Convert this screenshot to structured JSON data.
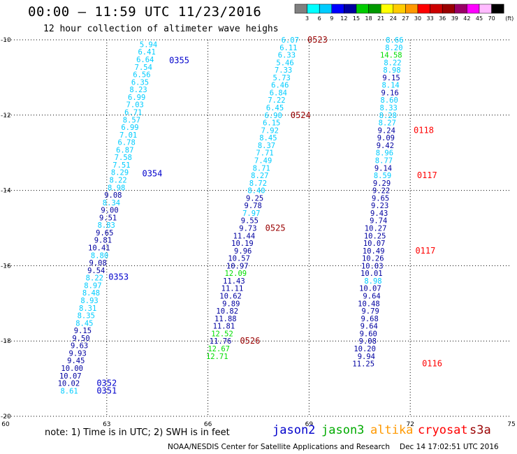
{
  "title": "00:00 – 11:59 UTC 11/23/2016",
  "subtitle": "12 hour collection of altimeter wave heighs",
  "legend": {
    "labels": [
      "3",
      "6",
      "9",
      "12",
      "15",
      "18",
      "21",
      "24",
      "27",
      "30",
      "33",
      "36",
      "39",
      "42",
      "45",
      "70"
    ],
    "unit": "(ft)",
    "colors": [
      "#808080",
      "#00ffff",
      "#00ccff",
      "#0000ff",
      "#0000a0",
      "#00cc00",
      "#009900",
      "#ffff00",
      "#ffcc00",
      "#ff9900",
      "#ff0000",
      "#cc0000",
      "#990000",
      "#990066",
      "#ff00ff",
      "#ffbbff",
      "#000000"
    ]
  },
  "note": "note: 1) Time is in UTC; 2) SWH is in feet",
  "satellites": [
    {
      "name": "jason2",
      "color": "#0000cc"
    },
    {
      "name": "jason3",
      "color": "#00aa00"
    },
    {
      "name": "altika",
      "color": "#ff9900"
    },
    {
      "name": "cryosat",
      "color": "#ff0000"
    },
    {
      "name": "s3a",
      "color": "#990000"
    }
  ],
  "credit": "NOAA/NESDIS Center for Satellite Applications and Research",
  "generated": "Dec 14 17:02:51 UTC 2016",
  "chart_data": {
    "type": "scatter",
    "x_ticks": [
      "60",
      "63",
      "66",
      "69",
      "72",
      "75"
    ],
    "y_ticks": [
      "-10",
      "-12",
      "-14",
      "-16",
      "-18",
      "-20"
    ],
    "xlim": [
      60,
      75
    ],
    "ylim": [
      -20,
      -10
    ],
    "grid": true,
    "tracks": [
      {
        "satellite": "jason2",
        "points": [
          {
            "x": 64.5,
            "y": -10.12,
            "v": "5.94"
          },
          {
            "x": 64.45,
            "y": -10.32,
            "v": "6.41"
          },
          {
            "x": 64.4,
            "y": -10.52,
            "v": "6.64"
          },
          {
            "x": 64.35,
            "y": -10.72,
            "v": "7.54"
          },
          {
            "x": 64.3,
            "y": -10.92,
            "v": "6.56"
          },
          {
            "x": 64.25,
            "y": -11.12,
            "v": "6.35"
          },
          {
            "x": 64.2,
            "y": -11.32,
            "v": "8.23"
          },
          {
            "x": 64.15,
            "y": -11.52,
            "v": "6.99"
          },
          {
            "x": 64.1,
            "y": -11.72,
            "v": "7.03"
          },
          {
            "x": 64.05,
            "y": -11.92,
            "v": "6.71"
          },
          {
            "x": 64.0,
            "y": -12.12,
            "v": "8.57"
          },
          {
            "x": 63.95,
            "y": -12.32,
            "v": "6.99"
          },
          {
            "x": 63.9,
            "y": -12.52,
            "v": "7.01"
          },
          {
            "x": 63.85,
            "y": -12.72,
            "v": "6.78"
          },
          {
            "x": 63.8,
            "y": -12.92,
            "v": "6.87"
          },
          {
            "x": 63.75,
            "y": -13.12,
            "v": "7.58"
          },
          {
            "x": 63.7,
            "y": -13.32,
            "v": "7.51"
          },
          {
            "x": 63.65,
            "y": -13.52,
            "v": "8.29"
          },
          {
            "x": 63.6,
            "y": -13.72,
            "v": "8.22"
          },
          {
            "x": 63.55,
            "y": -13.92,
            "v": "8.98"
          },
          {
            "x": 63.45,
            "y": -14.12,
            "v": "9.08"
          },
          {
            "x": 63.4,
            "y": -14.32,
            "v": "8.34"
          },
          {
            "x": 63.35,
            "y": -14.52,
            "v": "9.00"
          },
          {
            "x": 63.3,
            "y": -14.72,
            "v": "9.51"
          },
          {
            "x": 63.25,
            "y": -14.92,
            "v": "8.83"
          },
          {
            "x": 63.2,
            "y": -15.12,
            "v": "9.65"
          },
          {
            "x": 63.15,
            "y": -15.32,
            "v": "9.81"
          },
          {
            "x": 63.1,
            "y": -15.52,
            "v": "10.41"
          },
          {
            "x": 63.05,
            "y": -15.72,
            "v": "8.80"
          },
          {
            "x": 63.0,
            "y": -15.92,
            "v": "9.08"
          },
          {
            "x": 62.95,
            "y": -16.12,
            "v": "9.54"
          },
          {
            "x": 62.9,
            "y": -16.32,
            "v": "8.22"
          },
          {
            "x": 62.85,
            "y": -16.52,
            "v": "8.97"
          },
          {
            "x": 62.8,
            "y": -16.72,
            "v": "8.48"
          },
          {
            "x": 62.75,
            "y": -16.92,
            "v": "8.93"
          },
          {
            "x": 62.7,
            "y": -17.12,
            "v": "8.31"
          },
          {
            "x": 62.65,
            "y": -17.32,
            "v": "8.35"
          },
          {
            "x": 62.6,
            "y": -17.52,
            "v": "8.45"
          },
          {
            "x": 62.55,
            "y": -17.72,
            "v": "9.15"
          },
          {
            "x": 62.5,
            "y": -17.92,
            "v": "9.50"
          },
          {
            "x": 62.45,
            "y": -18.12,
            "v": "9.63"
          },
          {
            "x": 62.4,
            "y": -18.32,
            "v": "9.93"
          },
          {
            "x": 62.35,
            "y": -18.52,
            "v": "9.45"
          },
          {
            "x": 62.3,
            "y": -18.72,
            "v": "10.00"
          },
          {
            "x": 62.25,
            "y": -18.92,
            "v": "10.07"
          },
          {
            "x": 62.2,
            "y": -19.12,
            "v": "10.02"
          },
          {
            "x": 62.15,
            "y": -19.32,
            "v": "8.61"
          }
        ],
        "time_labels": [
          {
            "x": 64.85,
            "y": -10.55,
            "t": "0355"
          },
          {
            "x": 64.05,
            "y": -13.55,
            "t": "0354"
          },
          {
            "x": 63.05,
            "y": -16.3,
            "t": "0353"
          },
          {
            "x": 62.7,
            "y": -19.12,
            "t": "0352"
          },
          {
            "x": 62.7,
            "y": -19.32,
            "t": "0351"
          }
        ]
      },
      {
        "satellite": "jason2",
        "points": [
          {
            "x": 68.7,
            "y": -10.0,
            "v": "6.07"
          },
          {
            "x": 68.65,
            "y": -10.2,
            "v": "6.11"
          },
          {
            "x": 68.6,
            "y": -10.4,
            "v": "6.33"
          },
          {
            "x": 68.55,
            "y": -10.6,
            "v": "5.46"
          },
          {
            "x": 68.5,
            "y": -10.8,
            "v": "7.33"
          },
          {
            "x": 68.45,
            "y": -11.0,
            "v": "5.73"
          },
          {
            "x": 68.4,
            "y": -11.2,
            "v": "6.46"
          },
          {
            "x": 68.35,
            "y": -11.4,
            "v": "6.84"
          },
          {
            "x": 68.3,
            "y": -11.6,
            "v": "7.22"
          },
          {
            "x": 68.25,
            "y": -11.8,
            "v": "6.45"
          },
          {
            "x": 68.2,
            "y": -12.0,
            "v": "6.90"
          },
          {
            "x": 68.15,
            "y": -12.2,
            "v": "6.15"
          },
          {
            "x": 68.1,
            "y": -12.4,
            "v": "7.92"
          },
          {
            "x": 68.05,
            "y": -12.6,
            "v": "8.45"
          },
          {
            "x": 68.0,
            "y": -12.8,
            "v": "8.37"
          },
          {
            "x": 67.95,
            "y": -13.0,
            "v": "7.71"
          },
          {
            "x": 67.9,
            "y": -13.2,
            "v": "7.49"
          },
          {
            "x": 67.85,
            "y": -13.4,
            "v": "8.71"
          },
          {
            "x": 67.8,
            "y": -13.6,
            "v": "8.27"
          },
          {
            "x": 67.75,
            "y": -13.8,
            "v": "8.72"
          },
          {
            "x": 67.7,
            "y": -14.0,
            "v": "8.40"
          },
          {
            "x": 67.65,
            "y": -14.2,
            "v": "9.25"
          },
          {
            "x": 67.6,
            "y": -14.4,
            "v": "9.78"
          },
          {
            "x": 67.55,
            "y": -14.6,
            "v": "7.97"
          },
          {
            "x": 67.5,
            "y": -14.8,
            "v": "9.55"
          },
          {
            "x": 67.45,
            "y": -15.0,
            "v": "9.73"
          },
          {
            "x": 67.4,
            "y": -15.2,
            "v": "11.44"
          },
          {
            "x": 67.35,
            "y": -15.4,
            "v": "10.19"
          },
          {
            "x": 67.3,
            "y": -15.6,
            "v": "9.96"
          },
          {
            "x": 67.25,
            "y": -15.8,
            "v": "10.57"
          },
          {
            "x": 67.2,
            "y": -16.0,
            "v": "10.97"
          },
          {
            "x": 67.15,
            "y": -16.2,
            "v": "12.09"
          },
          {
            "x": 67.1,
            "y": -16.4,
            "v": "11.43"
          },
          {
            "x": 67.05,
            "y": -16.6,
            "v": "11.11"
          },
          {
            "x": 67.0,
            "y": -16.8,
            "v": "10.62"
          },
          {
            "x": 66.95,
            "y": -17.0,
            "v": "9.89"
          },
          {
            "x": 66.9,
            "y": -17.2,
            "v": "10.82"
          },
          {
            "x": 66.85,
            "y": -17.4,
            "v": "11.88"
          },
          {
            "x": 66.8,
            "y": -17.6,
            "v": "11.81"
          },
          {
            "x": 66.75,
            "y": -17.8,
            "v": "12.52"
          },
          {
            "x": 66.7,
            "y": -18.0,
            "v": "11.76"
          },
          {
            "x": 66.65,
            "y": -18.2,
            "v": "12.67"
          },
          {
            "x": 66.6,
            "y": -18.4,
            "v": "12.71"
          }
        ],
        "time_labels": [
          {
            "x": 68.95,
            "y": -10.0,
            "t": "0523"
          },
          {
            "x": 68.45,
            "y": -12.0,
            "t": "0524"
          },
          {
            "x": 67.7,
            "y": -15.0,
            "t": "0525"
          },
          {
            "x": 66.95,
            "y": -18.0,
            "t": "0526"
          }
        ]
      },
      {
        "satellite": "cryosat",
        "points": [
          {
            "x": 71.8,
            "y": -10.0,
            "v": "8.66"
          },
          {
            "x": 71.78,
            "y": -10.2,
            "v": "8.20"
          },
          {
            "x": 71.76,
            "y": -10.4,
            "v": "14.58"
          },
          {
            "x": 71.74,
            "y": -10.6,
            "v": "8.22"
          },
          {
            "x": 71.72,
            "y": -10.8,
            "v": "8.98"
          },
          {
            "x": 71.7,
            "y": -11.0,
            "v": "9.15"
          },
          {
            "x": 71.68,
            "y": -11.2,
            "v": "8.14"
          },
          {
            "x": 71.66,
            "y": -11.4,
            "v": "9.16"
          },
          {
            "x": 71.64,
            "y": -11.6,
            "v": "8.60"
          },
          {
            "x": 71.62,
            "y": -11.8,
            "v": "8.33"
          },
          {
            "x": 71.6,
            "y": -12.0,
            "v": "8.28"
          },
          {
            "x": 71.58,
            "y": -12.2,
            "v": "8.27"
          },
          {
            "x": 71.56,
            "y": -12.4,
            "v": "9.24"
          },
          {
            "x": 71.54,
            "y": -12.6,
            "v": "9.09"
          },
          {
            "x": 71.52,
            "y": -12.8,
            "v": "9.42"
          },
          {
            "x": 71.5,
            "y": -13.0,
            "v": "8.96"
          },
          {
            "x": 71.48,
            "y": -13.2,
            "v": "8.77"
          },
          {
            "x": 71.46,
            "y": -13.4,
            "v": "9.14"
          },
          {
            "x": 71.44,
            "y": -13.6,
            "v": "8.59"
          },
          {
            "x": 71.42,
            "y": -13.8,
            "v": "9.29"
          },
          {
            "x": 71.4,
            "y": -14.0,
            "v": "9.22"
          },
          {
            "x": 71.38,
            "y": -14.2,
            "v": "9.65"
          },
          {
            "x": 71.36,
            "y": -14.4,
            "v": "9.23"
          },
          {
            "x": 71.34,
            "y": -14.6,
            "v": "9.43"
          },
          {
            "x": 71.32,
            "y": -14.8,
            "v": "9.74"
          },
          {
            "x": 71.3,
            "y": -15.0,
            "v": "10.27"
          },
          {
            "x": 71.28,
            "y": -15.2,
            "v": "10.25"
          },
          {
            "x": 71.26,
            "y": -15.4,
            "v": "10.07"
          },
          {
            "x": 71.24,
            "y": -15.6,
            "v": "10.49"
          },
          {
            "x": 71.22,
            "y": -15.8,
            "v": "10.26"
          },
          {
            "x": 71.2,
            "y": -16.0,
            "v": "10.03"
          },
          {
            "x": 71.18,
            "y": -16.2,
            "v": "10.01"
          },
          {
            "x": 71.16,
            "y": -16.4,
            "v": "8.98"
          },
          {
            "x": 71.14,
            "y": -16.6,
            "v": "10.07"
          },
          {
            "x": 71.12,
            "y": -16.8,
            "v": "9.64"
          },
          {
            "x": 71.1,
            "y": -17.0,
            "v": "10.48"
          },
          {
            "x": 71.08,
            "y": -17.2,
            "v": "9.79"
          },
          {
            "x": 71.06,
            "y": -17.4,
            "v": "9.68"
          },
          {
            "x": 71.04,
            "y": -17.6,
            "v": "9.64"
          },
          {
            "x": 71.02,
            "y": -17.8,
            "v": "9.60"
          },
          {
            "x": 71.0,
            "y": -18.0,
            "v": "9.08"
          },
          {
            "x": 70.98,
            "y": -18.2,
            "v": "10.20"
          },
          {
            "x": 70.96,
            "y": -18.4,
            "v": "9.94"
          },
          {
            "x": 70.94,
            "y": -18.6,
            "v": "11.25"
          }
        ],
        "time_labels": [
          {
            "x": 72.1,
            "y": -12.4,
            "t": "0118"
          },
          {
            "x": 72.2,
            "y": -13.6,
            "t": "0117"
          },
          {
            "x": 72.15,
            "y": -15.6,
            "t": "0117"
          },
          {
            "x": 72.35,
            "y": -18.6,
            "t": "0116"
          }
        ]
      }
    ]
  }
}
